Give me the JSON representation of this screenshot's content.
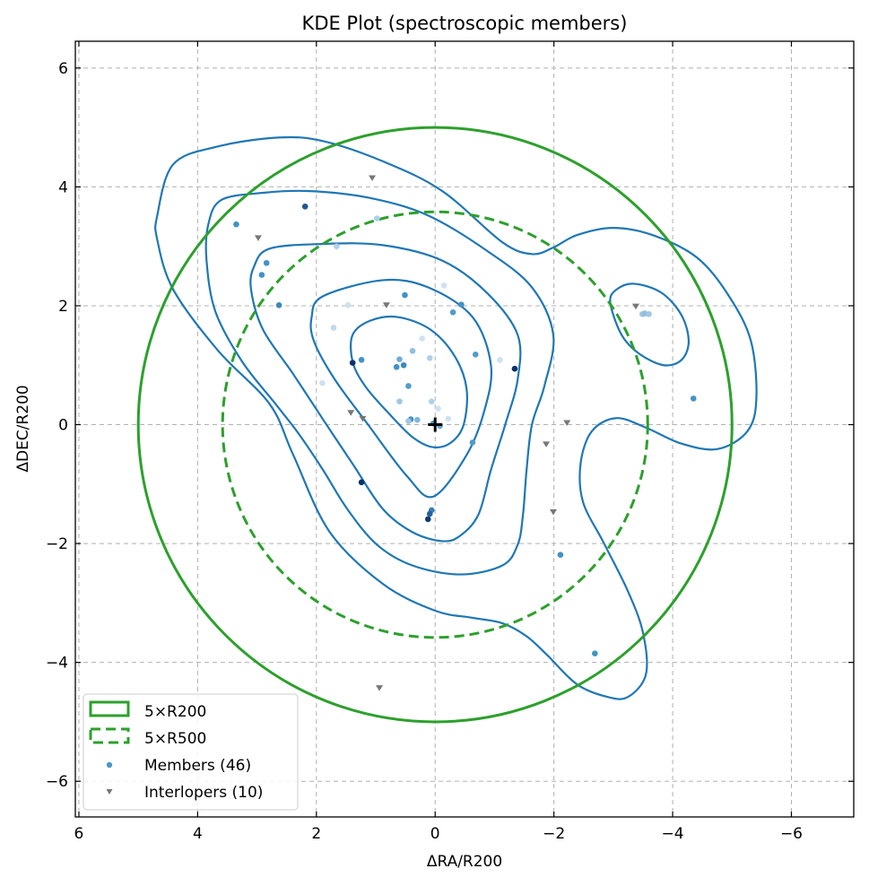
{
  "chart_data": {
    "type": "scatter",
    "title": "KDE Plot (spectroscopic members)",
    "xlabel": "ΔRA/R200",
    "ylabel": "ΔDEC/R200",
    "xlim": [
      6.06,
      -7.05
    ],
    "ylim": [
      -6.6,
      6.45
    ],
    "x_inverted": true,
    "grid": true,
    "xticks": [
      6,
      4,
      2,
      0,
      -2,
      -4,
      -6
    ],
    "yticks": [
      -6,
      -4,
      -2,
      0,
      2,
      4,
      6
    ],
    "xtick_labels": [
      "6",
      "4",
      "2",
      "0",
      "−2",
      "−4",
      "−6"
    ],
    "ytick_labels": [
      "−6",
      "−4",
      "−2",
      "0",
      "2",
      "4",
      "6"
    ],
    "legend_position": "lower-left",
    "legend": [
      {
        "label": "5×R200",
        "kind": "solid-box"
      },
      {
        "label": "5×R500",
        "kind": "dashed-box"
      },
      {
        "label": "Members (46)",
        "kind": "dot"
      },
      {
        "label": "Interlopers (10)",
        "kind": "triangle"
      }
    ],
    "colors": {
      "circle": "#2ca02c",
      "contour": "#1f77b4",
      "interloper": "#777777",
      "center": "#000000",
      "blues_light": "#deebf7",
      "blues_dark": "#08306b"
    },
    "circles": [
      {
        "name": "5×R200",
        "center": [
          0,
          0
        ],
        "radius": 5.0,
        "style": "solid"
      },
      {
        "name": "5×R500",
        "center": [
          0,
          0
        ],
        "radius": 3.58,
        "style": "dashed"
      }
    ],
    "center_marker": [
      0,
      0
    ],
    "contours": [
      {
        "level": 1,
        "points": [
          [
            1.39,
            1.06
          ],
          [
            1.39,
            1.51
          ],
          [
            1.09,
            1.75
          ],
          [
            0.63,
            1.81
          ],
          [
            0.08,
            1.6
          ],
          [
            -0.33,
            1.15
          ],
          [
            -0.53,
            0.6
          ],
          [
            -0.48,
            0
          ],
          [
            -0.27,
            -0.3
          ],
          [
            0.03,
            -0.38
          ],
          [
            0.38,
            -0.21
          ],
          [
            0.79,
            0.2
          ],
          [
            1.18,
            0.65
          ]
        ]
      },
      {
        "level": 2,
        "points": [
          [
            2.08,
            1.81
          ],
          [
            1.89,
            2.16
          ],
          [
            0.88,
            2.43
          ],
          [
            0.12,
            2.31
          ],
          [
            -0.63,
            1.81
          ],
          [
            -0.94,
            1.0
          ],
          [
            -0.83,
            0.24
          ],
          [
            -0.53,
            -0.51
          ],
          [
            0.03,
            -1.21
          ],
          [
            0.48,
            -0.86
          ],
          [
            1.13,
            0.0
          ],
          [
            1.69,
            0.76
          ],
          [
            2.04,
            1.4
          ]
        ]
      },
      {
        "level": 3,
        "points": [
          [
            3.05,
            2.66
          ],
          [
            2.79,
            2.96
          ],
          [
            1.89,
            3.04
          ],
          [
            0.88,
            3.02
          ],
          [
            -0.12,
            2.76
          ],
          [
            -0.88,
            2.21
          ],
          [
            -1.39,
            1.51
          ],
          [
            -1.39,
            0.76
          ],
          [
            -1.18,
            0
          ],
          [
            -0.94,
            -0.76
          ],
          [
            -0.73,
            -1.51
          ],
          [
            -0.42,
            -1.87
          ],
          [
            -0.12,
            -1.96
          ],
          [
            0.38,
            -1.81
          ],
          [
            0.88,
            -1.42
          ],
          [
            1.39,
            -0.66
          ],
          [
            1.89,
            0.09
          ],
          [
            2.39,
            0.85
          ],
          [
            2.9,
            1.6
          ],
          [
            3.1,
            2.27
          ]
        ]
      },
      {
        "level": 4,
        "points": [
          [
            3.82,
            3.37
          ],
          [
            3.6,
            3.78
          ],
          [
            2.9,
            3.9
          ],
          [
            2.14,
            3.93
          ],
          [
            1.13,
            3.82
          ],
          [
            0.12,
            3.52
          ],
          [
            -0.88,
            2.92
          ],
          [
            -1.63,
            2.31
          ],
          [
            -1.99,
            1.51
          ],
          [
            -1.84,
            0.65
          ],
          [
            -1.63,
            0
          ],
          [
            -1.54,
            -0.76
          ],
          [
            -1.48,
            -1.51
          ],
          [
            -1.39,
            -2.02
          ],
          [
            -1.13,
            -2.37
          ],
          [
            -0.42,
            -2.52
          ],
          [
            0.38,
            -2.37
          ],
          [
            0.98,
            -2.02
          ],
          [
            1.48,
            -1.42
          ],
          [
            1.89,
            -0.76
          ],
          [
            2.3,
            -0.15
          ],
          [
            2.69,
            0.35
          ],
          [
            3.25,
            1.06
          ],
          [
            3.7,
            1.9
          ],
          [
            3.85,
            2.76
          ]
        ]
      },
      {
        "level": 4,
        "points": [
          [
            -2.95,
            2.05
          ],
          [
            -3.05,
            2.27
          ],
          [
            -3.35,
            2.37
          ],
          [
            -3.81,
            2.22
          ],
          [
            -4.15,
            1.84
          ],
          [
            -4.27,
            1.4
          ],
          [
            -4.15,
            1.09
          ],
          [
            -3.85,
            1.0
          ],
          [
            -3.44,
            1.19
          ],
          [
            -3.14,
            1.51
          ]
        ]
      },
      {
        "level": 5,
        "points": [
          [
            4.68,
            3.52
          ],
          [
            4.41,
            4.38
          ],
          [
            3.66,
            4.68
          ],
          [
            2.64,
            4.83
          ],
          [
            1.89,
            4.77
          ],
          [
            0.88,
            4.43
          ],
          [
            -0.12,
            3.93
          ],
          [
            -1.13,
            3.07
          ],
          [
            -1.63,
            2.87
          ],
          [
            -1.99,
            2.98
          ],
          [
            -2.39,
            3.19
          ],
          [
            -2.99,
            3.31
          ],
          [
            -3.66,
            3.19
          ],
          [
            -4.41,
            2.81
          ],
          [
            -4.95,
            2.16
          ],
          [
            -5.32,
            1.4
          ],
          [
            -5.41,
            0.44
          ],
          [
            -5.26,
            -0.11
          ],
          [
            -4.76,
            -0.41
          ],
          [
            -4.15,
            -0.32
          ],
          [
            -3.55,
            -0.05
          ],
          [
            -3.05,
            0.11
          ],
          [
            -2.64,
            -0.11
          ],
          [
            -2.45,
            -0.65
          ],
          [
            -2.49,
            -1.3
          ],
          [
            -2.84,
            -1.99
          ],
          [
            -3.25,
            -2.81
          ],
          [
            -3.5,
            -3.5
          ],
          [
            -3.55,
            -4.2
          ],
          [
            -3.25,
            -4.58
          ],
          [
            -2.9,
            -4.58
          ],
          [
            -2.39,
            -4.37
          ],
          [
            -1.89,
            -3.88
          ],
          [
            -1.54,
            -3.56
          ],
          [
            -1.13,
            -3.34
          ],
          [
            -0.63,
            -3.25
          ],
          [
            0,
            -3.13
          ],
          [
            0.88,
            -2.68
          ],
          [
            1.78,
            -1.8
          ],
          [
            2.39,
            -0.51
          ],
          [
            2.79,
            0.35
          ],
          [
            3.66,
            1.25
          ],
          [
            4.41,
            2.27
          ],
          [
            4.68,
            3.11
          ]
        ]
      }
    ],
    "members": [
      [
        3.35,
        3.37,
        0.5
      ],
      [
        2.19,
        3.67,
        0.8
      ],
      [
        2.84,
        2.72,
        0.5
      ],
      [
        2.92,
        2.52,
        0.5
      ],
      [
        2.63,
        2.01,
        0.55
      ],
      [
        1.66,
        3.0,
        0.15
      ],
      [
        0.98,
        3.47,
        0.15
      ],
      [
        1.71,
        1.63,
        0.1
      ],
      [
        1.39,
        1.04,
        1.0
      ],
      [
        1.24,
        1.09,
        0.5
      ],
      [
        0.51,
        2.18,
        0.5
      ],
      [
        -0.44,
        2.02,
        0.5
      ],
      [
        -0.3,
        1.89,
        0.45
      ],
      [
        -0.68,
        1.18,
        0.45
      ],
      [
        0.38,
        1.24,
        0.25
      ],
      [
        0.6,
        1.1,
        0.35
      ],
      [
        0.65,
        0.97,
        0.5
      ],
      [
        0.53,
        1.0,
        0.55
      ],
      [
        0.45,
        0.65,
        0.45
      ],
      [
        0.09,
        1.12,
        0.15
      ],
      [
        0.6,
        0.39,
        0.2
      ],
      [
        0.06,
        0.39,
        0.15
      ],
      [
        0.41,
        0.09,
        0.5
      ],
      [
        0.45,
        0.06,
        0.2
      ],
      [
        -0.08,
        -0.02,
        0.4
      ],
      [
        0.03,
        0.02,
        0.5
      ],
      [
        -0.63,
        -0.3,
        0.45
      ],
      [
        -1.34,
        0.94,
        1.0
      ],
      [
        1.24,
        -0.97,
        1.0
      ],
      [
        0.06,
        -1.44,
        0.6
      ],
      [
        0.09,
        -1.5,
        0.75
      ],
      [
        0.12,
        -1.59,
        0.95
      ],
      [
        -2.11,
        -2.19,
        0.5
      ],
      [
        -2.69,
        -3.85,
        0.5
      ],
      [
        -3.49,
        1.86,
        0.2
      ],
      [
        -3.53,
        1.87,
        0.25
      ],
      [
        -3.6,
        1.86,
        0.2
      ],
      [
        -4.35,
        0.44,
        0.5
      ],
      [
        -0.15,
        2.34,
        0.05
      ],
      [
        -0.05,
        0.27,
        0.05
      ],
      [
        -1.09,
        1.09,
        0.05
      ],
      [
        1.47,
        2.01,
        0.05
      ],
      [
        0.22,
        1.45,
        0.05
      ],
      [
        -0.22,
        0.1,
        0.05
      ],
      [
        1.9,
        0.7,
        0.05
      ],
      [
        0.3,
        0.08,
        0.3
      ]
    ],
    "interlopers": [
      [
        1.06,
        4.15
      ],
      [
        2.98,
        3.14
      ],
      [
        0.82,
        2.01
      ],
      [
        1.42,
        0.2
      ],
      [
        1.22,
        0.1
      ],
      [
        0.94,
        -4.43
      ],
      [
        -1.87,
        -0.33
      ],
      [
        -2.22,
        0.03
      ],
      [
        -1.99,
        -1.47
      ],
      [
        -3.38,
        1.99
      ]
    ]
  }
}
